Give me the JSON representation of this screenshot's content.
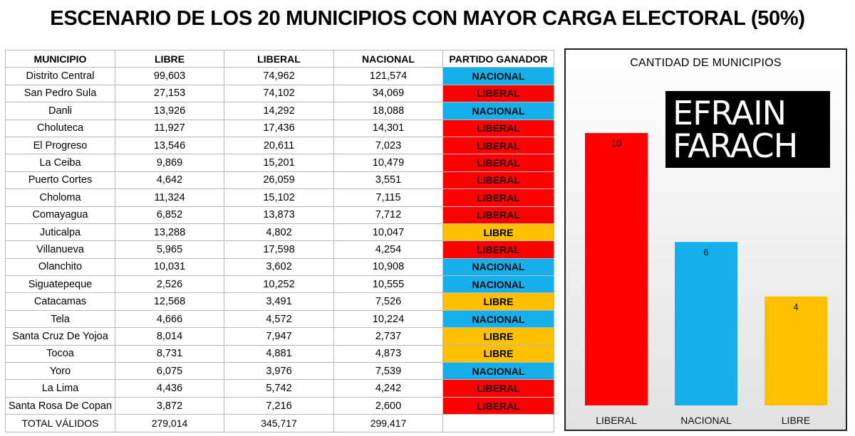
{
  "title": "ESCENARIO DE LOS 20 MUNICIPIOS CON MAYOR CARGA ELECTORAL (50%)",
  "colors": {
    "nacional": "#15b0ec",
    "liberal": "#ff0000",
    "libre": "#ffc000"
  },
  "table": {
    "headers": [
      "MUNICIPIO",
      "LIBRE",
      "LIBERAL",
      "NACIONAL",
      "PARTIDO GANADOR"
    ],
    "rows": [
      {
        "municipio": "Distrito Central",
        "libre": "99,603",
        "liberal": "74,962",
        "nacional": "121,574",
        "ganador": "NACIONAL"
      },
      {
        "municipio": "San Pedro Sula",
        "libre": "27,153",
        "liberal": "74,102",
        "nacional": "34,069",
        "ganador": "LIBERAL"
      },
      {
        "municipio": "Danli",
        "libre": "13,926",
        "liberal": "14,292",
        "nacional": "18,088",
        "ganador": "NACIONAL"
      },
      {
        "municipio": "Choluteca",
        "libre": "11,927",
        "liberal": "17,436",
        "nacional": "14,301",
        "ganador": "LIBERAL"
      },
      {
        "municipio": "El Progreso",
        "libre": "13,546",
        "liberal": "20,611",
        "nacional": "7,023",
        "ganador": "LIBERAL"
      },
      {
        "municipio": "La Ceiba",
        "libre": "9,869",
        "liberal": "15,201",
        "nacional": "10,479",
        "ganador": "LIBERAL"
      },
      {
        "municipio": "Puerto Cortes",
        "libre": "4,642",
        "liberal": "26,059",
        "nacional": "3,551",
        "ganador": "LIBERAL"
      },
      {
        "municipio": "Choloma",
        "libre": "11,324",
        "liberal": "15,102",
        "nacional": "7,115",
        "ganador": "LIBERAL"
      },
      {
        "municipio": "Comayagua",
        "libre": "6,852",
        "liberal": "13,873",
        "nacional": "7,712",
        "ganador": "LIBERAL"
      },
      {
        "municipio": "Juticalpa",
        "libre": "13,288",
        "liberal": "4,802",
        "nacional": "10,047",
        "ganador": "LIBRE"
      },
      {
        "municipio": "Villanueva",
        "libre": "5,965",
        "liberal": "17,598",
        "nacional": "4,254",
        "ganador": "LIBERAL"
      },
      {
        "municipio": "Olanchito",
        "libre": "10,031",
        "liberal": "3,602",
        "nacional": "10,908",
        "ganador": "NACIONAL"
      },
      {
        "municipio": "Siguatepeque",
        "libre": "2,526",
        "liberal": "10,252",
        "nacional": "10,555",
        "ganador": "NACIONAL"
      },
      {
        "municipio": "Catacamas",
        "libre": "12,568",
        "liberal": "3,491",
        "nacional": "7,526",
        "ganador": "LIBRE"
      },
      {
        "municipio": "Tela",
        "libre": "4,666",
        "liberal": "4,572",
        "nacional": "10,224",
        "ganador": "NACIONAL"
      },
      {
        "municipio": "Santa Cruz De Yojoa",
        "libre": "8,014",
        "liberal": "7,947",
        "nacional": "2,737",
        "ganador": "LIBRE"
      },
      {
        "municipio": "Tocoa",
        "libre": "8,731",
        "liberal": "4,881",
        "nacional": "4,873",
        "ganador": "LIBRE"
      },
      {
        "municipio": "Yoro",
        "libre": "6,075",
        "liberal": "3,976",
        "nacional": "7,539",
        "ganador": "NACIONAL"
      },
      {
        "municipio": "La Lima",
        "libre": "4,436",
        "liberal": "5,742",
        "nacional": "4,242",
        "ganador": "LIBERAL"
      },
      {
        "municipio": "Santa Rosa De Copan",
        "libre": "3,872",
        "liberal": "7,216",
        "nacional": "2,600",
        "ganador": "LIBERAL"
      }
    ],
    "total": {
      "label": "TOTAL VÁLIDOS",
      "libre": "279,014",
      "liberal": "345,717",
      "nacional": "299,417",
      "ganador": ""
    }
  },
  "logo": {
    "line1": "EFRAIN",
    "line2": "FARACH"
  },
  "chart_data": {
    "type": "bar",
    "title": "CANTIDAD DE MUNICIPIOS",
    "categories": [
      "LIBERAL",
      "NACIONAL",
      "LIBRE"
    ],
    "values": [
      10,
      6,
      4
    ],
    "bar_colors": [
      "#ff0000",
      "#15b0ec",
      "#ffc000"
    ],
    "ylim": [
      0,
      10
    ],
    "grid": false,
    "legend": "none",
    "data_labels": true
  }
}
